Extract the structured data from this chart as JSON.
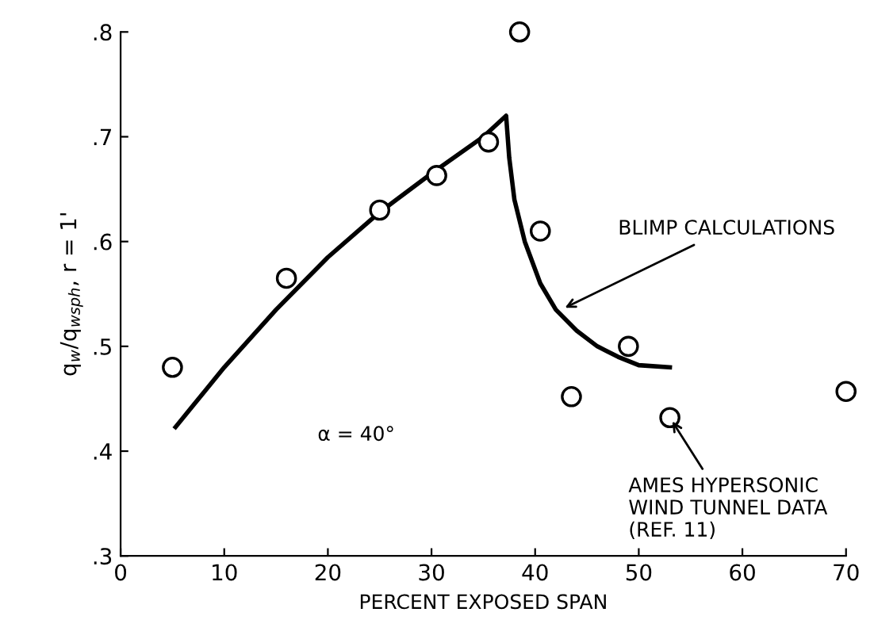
{
  "chart_data": {
    "type": "scatter",
    "xlabel": "PERCENT EXPOSED SPAN",
    "ylabel": "q$_{w}$/q$_{wsph}$, r = 1'",
    "xlim": [
      0,
      70
    ],
    "xticks": [
      0,
      10,
      20,
      30,
      40,
      50,
      60,
      70
    ],
    "ylim": [
      0.3,
      0.8
    ],
    "yticks": [
      {
        "value": 0.3,
        "label": ".3"
      },
      {
        "value": 0.4,
        "label": ".4"
      },
      {
        "value": 0.5,
        "label": ".5"
      },
      {
        "value": 0.6,
        "label": ".6"
      },
      {
        "value": 0.7,
        "label": ".7"
      },
      {
        "value": 0.8,
        "label": ".8"
      }
    ],
    "grid": false,
    "legend": false,
    "series": [
      {
        "type": "line",
        "color": "#000000",
        "marker": "none",
        "line_style": "solid",
        "x": [
          5.3,
          10,
          15,
          20,
          25,
          30,
          35,
          37.2,
          37.5,
          38,
          39,
          40.5,
          42,
          44,
          46,
          48,
          50,
          53
        ],
        "values": [
          0.423,
          0.48,
          0.535,
          0.585,
          0.628,
          0.665,
          0.7,
          0.72,
          0.68,
          0.64,
          0.6,
          0.56,
          0.535,
          0.515,
          0.5,
          0.49,
          0.482,
          0.48
        ]
      },
      {
        "color": "#000000",
        "marker": "circle",
        "x": [
          5,
          16,
          25,
          30.5,
          35.5,
          38.5,
          40.5,
          43.5,
          49,
          53,
          70
        ],
        "values": [
          0.48,
          0.565,
          0.63,
          0.663,
          0.695,
          0.8,
          0.61,
          0.452,
          0.5,
          0.432,
          0.457
        ]
      }
    ],
    "annotations": [
      "α = 40°",
      {
        "text": "BLIMP CALCULATIONS",
        "x": 42.5,
        "y": 0.535
      },
      {
        "text": "AMES HYPERSONIC\nWIND TUNNEL DATA\n(REF. 11)",
        "x": 53,
        "y": 0.432
      }
    ]
  }
}
